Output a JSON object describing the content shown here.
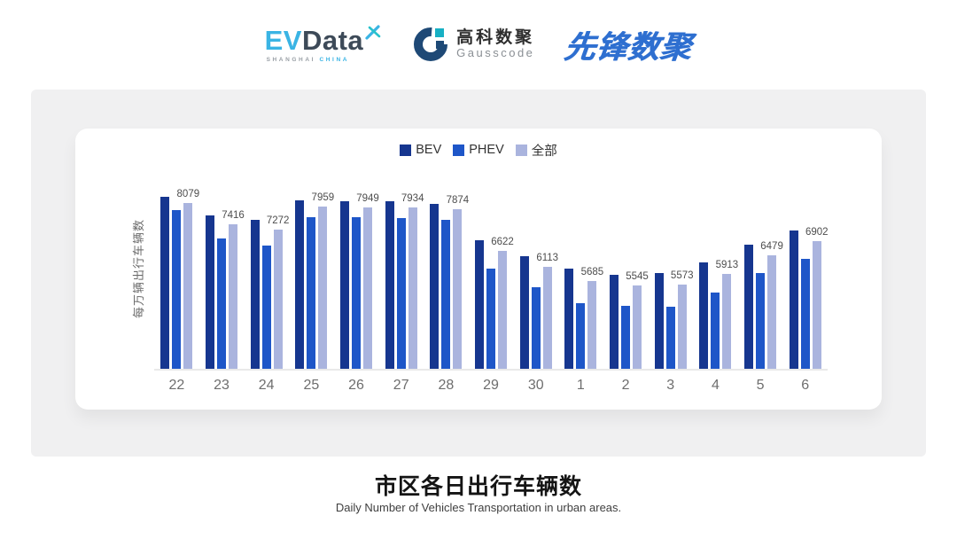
{
  "header": {
    "evdata": {
      "ev": "EV",
      "data": "Data",
      "sub_shanghai": "SHANGHAI",
      "sub_china": "CHINA"
    },
    "gausscode": {
      "name_cn": "高科数聚",
      "name_en": "Gausscode"
    },
    "pioneer": {
      "name": "先锋数聚"
    }
  },
  "chart_data": {
    "type": "bar",
    "title": "市区各日出行车辆数",
    "subtitle": "Daily Number of Vehicles Transportation in urban areas.",
    "ylabel": "每万辆出行车辆数",
    "categories": [
      "22",
      "23",
      "24",
      "25",
      "26",
      "27",
      "28",
      "29",
      "30",
      "1",
      "2",
      "3",
      "4",
      "5",
      "6"
    ],
    "series": [
      {
        "key": "bev",
        "name": "BEV",
        "color": "#16368f",
        "show_labels": false,
        "values": [
          8255,
          7683,
          7556,
          8146,
          8137,
          8130,
          8037,
          6940,
          6450,
          6060,
          5878,
          5942,
          6259,
          6794,
          7230
        ]
      },
      {
        "key": "phev",
        "name": "PHEV",
        "color": "#1e56c8",
        "show_labels": false,
        "values": [
          7865,
          7003,
          6776,
          7647,
          7638,
          7602,
          7556,
          6078,
          5498,
          5017,
          4926,
          4908,
          5334,
          5924,
          6368
        ]
      },
      {
        "key": "all",
        "name": "全部",
        "color": "#aab4de",
        "show_labels": true,
        "values": [
          8079,
          7416,
          7272,
          7959,
          7949,
          7934,
          7874,
          6622,
          6113,
          5685,
          5545,
          5573,
          5913,
          6479,
          6902
        ]
      }
    ],
    "ylim": [
      3000,
      8700
    ],
    "grid": false,
    "legend_position": "top",
    "colors": {
      "axis_line": "#e9e9e9",
      "tick_label": "#6e6e6e",
      "value_label": "#4d4d4d"
    }
  }
}
